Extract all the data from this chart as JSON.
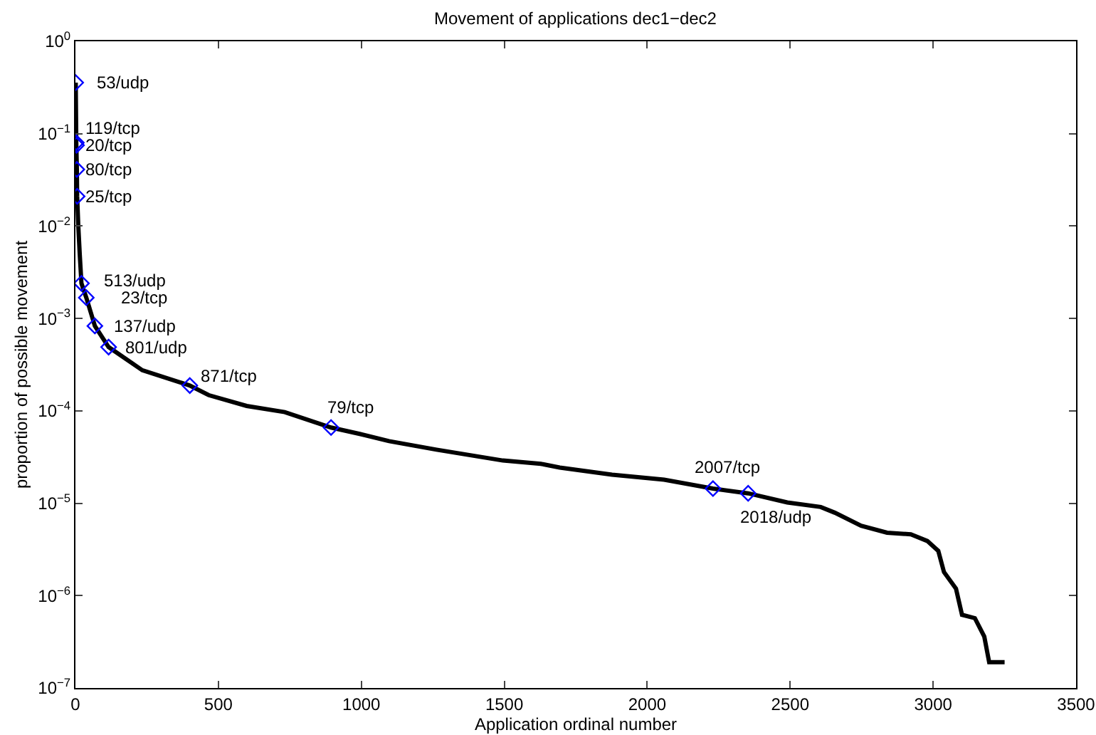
{
  "chart_data": {
    "type": "line",
    "title": "Movement of applications dec1−dec2",
    "xlabel": "Application ordinal number",
    "ylabel": "proportion of possible movement",
    "xlim": [
      0,
      3500
    ],
    "xticks": [
      0,
      500,
      1000,
      1500,
      2000,
      2500,
      3000,
      3500
    ],
    "ylim": [
      1e-07,
      1
    ],
    "yticks": [
      {
        "value": 1e-07,
        "label": "10$^{−7}$"
      },
      {
        "value": 1e-06,
        "label": "10$^{−6}$"
      },
      {
        "value": 1e-05,
        "label": "10$^{−5}$"
      },
      {
        "value": 0.0001,
        "label": "10$^{−4}$"
      },
      {
        "value": 0.001,
        "label": "10$^{−3}$"
      },
      {
        "value": 0.01,
        "label": "10$^{−2}$"
      },
      {
        "value": 0.1,
        "label": "10$^{−1}$"
      },
      {
        "value": 1,
        "label": "10$^{0}$"
      }
    ],
    "log": "y",
    "series": [
      {
        "type": "line",
        "color": "#000000",
        "x": [
          1,
          3,
          5,
          6,
          10,
          15,
          21,
          38,
          68,
          116,
          234,
          400,
          466,
          599,
          732,
          894,
          997,
          1097,
          1263,
          1495,
          1628,
          1694,
          1877,
          2059,
          2230,
          2353,
          2490,
          2607,
          2656,
          2748,
          2839,
          2922,
          2980,
          3018,
          3038,
          3080,
          3101,
          3146,
          3179,
          3196,
          3250
        ],
        "values": [
          0.357,
          0.08,
          0.041,
          0.021,
          0.01,
          0.005,
          0.0024,
          0.00168,
          0.00083,
          0.00049,
          0.000275,
          0.000188,
          0.000148,
          0.000113,
          9.7e-05,
          6.6e-05,
          5.6e-05,
          4.7e-05,
          3.8e-05,
          2.9e-05,
          2.67e-05,
          2.43e-05,
          2.04e-05,
          1.8e-05,
          1.44e-05,
          1.28e-05,
          1.02e-05,
          9.1e-06,
          7.9e-06,
          5.7e-06,
          4.8e-06,
          4.6e-06,
          3.9e-06,
          3.05e-06,
          1.8e-06,
          1.19e-06,
          6.2e-07,
          5.7e-07,
          3.6e-07,
          1.9e-07,
          1.9e-07
        ]
      },
      {
        "type": "scatter",
        "marker": "diamond",
        "color": "#0000ff",
        "x": [
          1,
          3,
          4,
          5,
          6,
          21,
          38,
          68,
          116,
          400,
          894,
          2230,
          2353
        ],
        "values": [
          0.357,
          0.08,
          0.075,
          0.041,
          0.021,
          0.0024,
          0.00168,
          0.00083,
          0.00049,
          0.000188,
          6.6e-05,
          1.44e-05,
          1.28e-05
        ]
      }
    ],
    "annotations": [
      {
        "text": "53/udp",
        "x": 1,
        "y": 0.357
      },
      {
        "text": "20/tcp",
        "x": 3,
        "y": 0.08
      },
      {
        "text": "119/tcp",
        "x": 4,
        "y": 0.075
      },
      {
        "text": "80/tcp",
        "x": 5,
        "y": 0.041
      },
      {
        "text": "25/tcp",
        "x": 6,
        "y": 0.021
      },
      {
        "text": "513/udp",
        "x": 21,
        "y": 0.0024
      },
      {
        "text": "23/tcp",
        "x": 38,
        "y": 0.00168
      },
      {
        "text": "137/udp",
        "x": 68,
        "y": 0.00083
      },
      {
        "text": "801/udp",
        "x": 116,
        "y": 0.00049
      },
      {
        "text": "871/tcp",
        "x": 400,
        "y": 0.000188
      },
      {
        "text": "79/tcp",
        "x": 894,
        "y": 6.6e-05
      },
      {
        "text": "2007/tcp",
        "x": 2230,
        "y": 1.44e-05
      },
      {
        "text": "2018/udp",
        "x": 2353,
        "y": 1.28e-05
      }
    ]
  }
}
